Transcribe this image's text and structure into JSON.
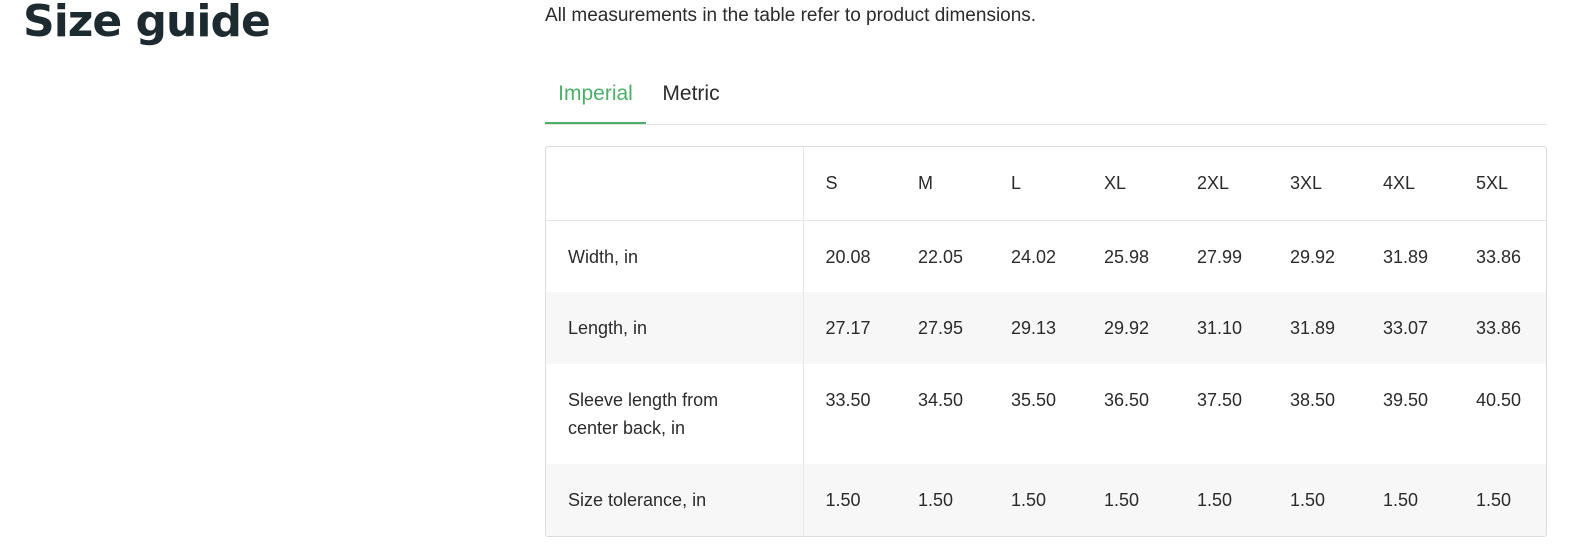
{
  "page": {
    "title": "Size guide",
    "intro": "All measurements in the table refer to product dimensions."
  },
  "tabs": [
    {
      "label": "Imperial",
      "active": true
    },
    {
      "label": "Metric",
      "active": false
    }
  ],
  "colors": {
    "accent": "#4caf66",
    "title": "#1d2a30",
    "text": "#2b2b2b",
    "stripe": "#f7f7f7",
    "border": "#dcdcdc"
  },
  "table": {
    "sizes": [
      "S",
      "M",
      "L",
      "XL",
      "2XL",
      "3XL",
      "4XL",
      "5XL"
    ],
    "rows": [
      {
        "label": "Width, in",
        "values": [
          "20.08",
          "22.05",
          "24.02",
          "25.98",
          "27.99",
          "29.92",
          "31.89",
          "33.86"
        ]
      },
      {
        "label": "Length, in",
        "values": [
          "27.17",
          "27.95",
          "29.13",
          "29.92",
          "31.10",
          "31.89",
          "33.07",
          "33.86"
        ]
      },
      {
        "label": "Sleeve length from center back, in",
        "values": [
          "33.50",
          "34.50",
          "35.50",
          "36.50",
          "37.50",
          "38.50",
          "39.50",
          "40.50"
        ]
      },
      {
        "label": "Size tolerance, in",
        "values": [
          "1.50",
          "1.50",
          "1.50",
          "1.50",
          "1.50",
          "1.50",
          "1.50",
          "1.50"
        ]
      }
    ]
  }
}
